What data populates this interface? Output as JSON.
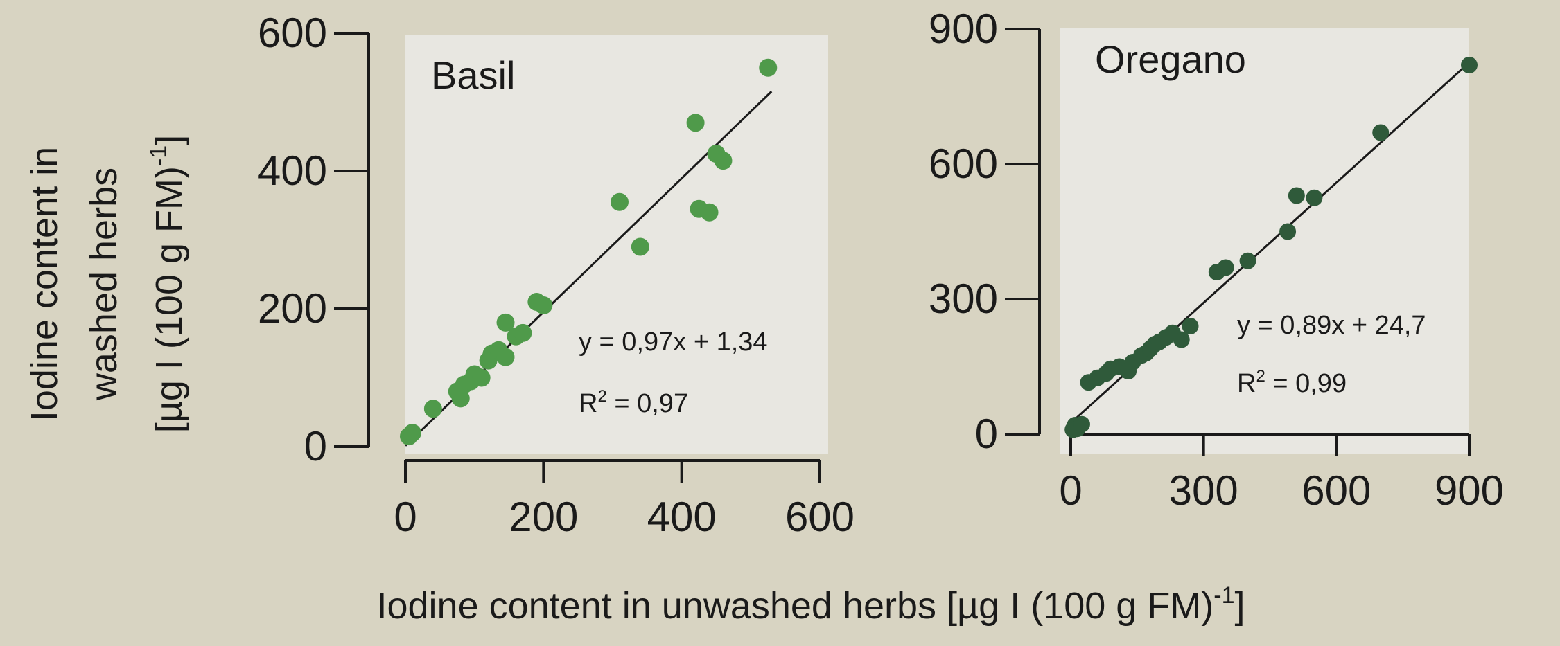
{
  "figure": {
    "ylabel_lines": [
      "Iodine content in",
      "washed herbs",
      "[µg I (100 g FM)",
      "-1",
      "]"
    ],
    "xlabel": "Iodine content in unwashed herbs [µg I (100 g FM)",
    "xlabel_sup": "-1",
    "xlabel_end": "]"
  },
  "chart_data": [
    {
      "type": "scatter",
      "title": "Basil",
      "xlim": [
        0,
        600
      ],
      "ylim": [
        0,
        600
      ],
      "xticks": [
        "0",
        "200",
        "400",
        "600"
      ],
      "yticks": [
        "0",
        "200",
        "400",
        "600"
      ],
      "point_color": "#4f9a4a",
      "equation": "y = 0,97x + 1,34",
      "r2_label": "R",
      "r2_sup": "2",
      "r2_value": " = 0,97",
      "fit": {
        "slope": 0.97,
        "intercept": 1.34,
        "x_range": [
          0,
          530
        ]
      },
      "points": [
        [
          5,
          15
        ],
        [
          10,
          20
        ],
        [
          40,
          55
        ],
        [
          75,
          80
        ],
        [
          80,
          70
        ],
        [
          85,
          90
        ],
        [
          95,
          95
        ],
        [
          100,
          105
        ],
        [
          110,
          100
        ],
        [
          120,
          125
        ],
        [
          125,
          135
        ],
        [
          135,
          140
        ],
        [
          145,
          130
        ],
        [
          145,
          180
        ],
        [
          160,
          160
        ],
        [
          170,
          165
        ],
        [
          190,
          210
        ],
        [
          200,
          205
        ],
        [
          310,
          355
        ],
        [
          340,
          290
        ],
        [
          420,
          470
        ],
        [
          425,
          345
        ],
        [
          440,
          340
        ],
        [
          450,
          425
        ],
        [
          460,
          415
        ],
        [
          525,
          550
        ]
      ]
    },
    {
      "type": "scatter",
      "title": "Oregano",
      "xlim": [
        0,
        900
      ],
      "ylim": [
        0,
        900
      ],
      "xticks": [
        "0",
        "300",
        "600",
        "900"
      ],
      "yticks": [
        "0",
        "300",
        "600",
        "900"
      ],
      "point_color": "#2f5a3a",
      "equation": "y = 0,89x + 24,7",
      "r2_label": "R",
      "r2_sup": "2",
      "r2_value": " = 0,99",
      "fit": {
        "slope": 0.89,
        "intercept": 24.7,
        "x_range": [
          0,
          900
        ]
      },
      "points": [
        [
          5,
          10
        ],
        [
          10,
          20
        ],
        [
          15,
          12
        ],
        [
          25,
          22
        ],
        [
          40,
          115
        ],
        [
          60,
          125
        ],
        [
          80,
          135
        ],
        [
          90,
          145
        ],
        [
          110,
          150
        ],
        [
          130,
          140
        ],
        [
          140,
          160
        ],
        [
          160,
          175
        ],
        [
          170,
          180
        ],
        [
          180,
          190
        ],
        [
          190,
          200
        ],
        [
          200,
          205
        ],
        [
          215,
          215
        ],
        [
          230,
          225
        ],
        [
          250,
          210
        ],
        [
          270,
          240
        ],
        [
          330,
          360
        ],
        [
          350,
          370
        ],
        [
          400,
          385
        ],
        [
          490,
          450
        ],
        [
          510,
          530
        ],
        [
          550,
          525
        ],
        [
          700,
          670
        ],
        [
          900,
          820
        ]
      ]
    }
  ]
}
